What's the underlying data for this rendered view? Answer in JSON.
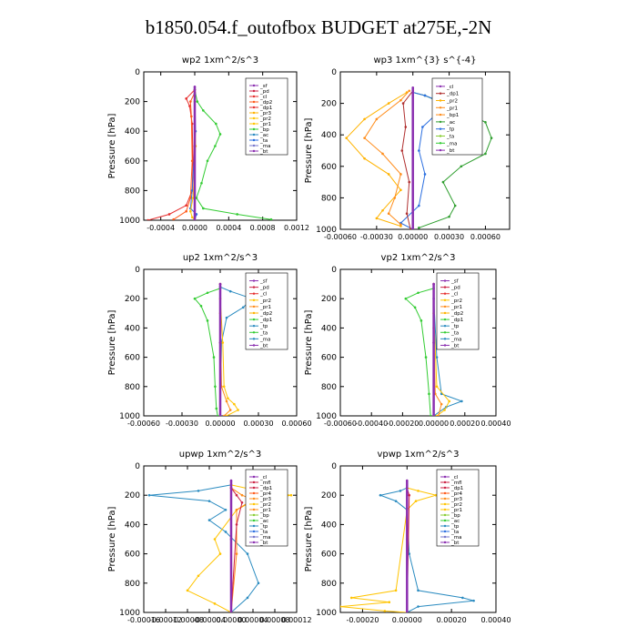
{
  "figure": {
    "title": "b1850.054.f_outofbox  BUDGET at275E,-2N"
  },
  "chart_data": [
    {
      "type": "line",
      "title": "wp2   1xm^2/s^3",
      "ylabel": "Pressure [hPa]",
      "xlim": [
        -0.0006,
        0.0012
      ],
      "ylim": [
        0,
        1000
      ],
      "xticks": [
        -0.0004,
        0.0,
        0.0004,
        0.0008,
        0.0012
      ],
      "xticklabels": [
        "-0.0004",
        "0.0000",
        "0.0004",
        "0.0008",
        "0.0012"
      ],
      "yticks": [
        0,
        200,
        400,
        600,
        800,
        1000
      ],
      "yticklabels": [
        "0",
        "200",
        "400",
        "600",
        "800",
        "1000"
      ],
      "legend": [
        "_sf",
        "_pd",
        "_cl",
        "_dp2",
        "_dp1",
        "_pr3",
        "_pr2",
        "_pr1",
        "_bp",
        "_ac",
        "_ta",
        "_ma",
        "_bt"
      ],
      "series": [
        {
          "name": "_bp",
          "color": "#33cc33",
          "x": [
            0,
            3e-05,
            0.0001,
            0.00025,
            0.0003,
            0.00024,
            0.00015,
            8e-05,
            2e-05,
            0.0001,
            0.0005,
            0.0009
          ],
          "y": [
            120,
            200,
            260,
            350,
            420,
            500,
            600,
            750,
            850,
            920,
            960,
            995
          ]
        },
        {
          "name": "_dp1",
          "color": "#e62e2e",
          "x": [
            0,
            -0.0001,
            -6e-05,
            -3e-05,
            -2e-05,
            -3e-05,
            -0.0001,
            -0.0003,
            -0.00055
          ],
          "y": [
            120,
            180,
            230,
            350,
            600,
            800,
            900,
            960,
            1000
          ]
        },
        {
          "name": "_dp2",
          "color": "#ff5a1a",
          "x": [
            0,
            -5e-05,
            -4e-05,
            -3e-05,
            -5e-05,
            -0.0001,
            -0.00025
          ],
          "y": [
            140,
            200,
            300,
            600,
            850,
            940,
            995
          ]
        },
        {
          "name": "_ta",
          "color": "#2a6ee0",
          "x": [
            0,
            1e-05,
            -3e-05,
            -5e-05,
            2e-05,
            0
          ],
          "y": [
            150,
            400,
            800,
            920,
            960,
            1000
          ]
        },
        {
          "name": "_pr1",
          "color": "#ffc400",
          "x": [
            0,
            1e-05,
            -2e-05,
            -5e-05,
            -3e-05,
            0
          ],
          "y": [
            200,
            500,
            850,
            940,
            980,
            1000
          ]
        },
        {
          "name": "_bt",
          "color": "#8b2fb0",
          "x": [
            0,
            0,
            0
          ],
          "y": [
            100,
            500,
            1000
          ]
        }
      ]
    },
    {
      "type": "line",
      "title": "wp3   1xm^{3} s^{-4}",
      "ylabel": "Pressure [hPa]",
      "xlim": [
        -0.0006,
        0.0008
      ],
      "ylim": [
        0,
        1000
      ],
      "xticks": [
        -0.0006,
        -0.0003,
        0.0,
        0.0003,
        0.0006
      ],
      "xticklabels": [
        "-0.00060",
        "-0.00030",
        "0.00000",
        "0.00030",
        "0.00060"
      ],
      "yticks": [
        0,
        200,
        400,
        600,
        800,
        1000
      ],
      "yticklabels": [
        "0",
        "200",
        "400",
        "600",
        "800",
        "1000"
      ],
      "legend": [
        "_cl",
        "_dp1",
        "_pr2",
        "_pr1",
        "_bp1",
        "_ac",
        "_tp",
        "_ta",
        "_ma",
        "_bt"
      ],
      "series": [
        {
          "name": "_ac",
          "color": "#2e9e2e",
          "x": [
            0,
            0.0001,
            0.00025,
            0.00045,
            0.0006,
            0.00065,
            0.0006,
            0.0004,
            0.00025,
            0.00035,
            0.0003,
            5e-05
          ],
          "y": [
            130,
            150,
            200,
            260,
            320,
            420,
            520,
            600,
            700,
            850,
            920,
            990
          ]
        },
        {
          "name": "_tp",
          "color": "#2a6ee0",
          "x": [
            0,
            0.0001,
            0.0002,
            0.00022,
            8e-05,
            5e-05,
            0.0001,
            5e-05,
            -0.0001,
            0
          ],
          "y": [
            130,
            150,
            180,
            250,
            350,
            500,
            650,
            850,
            960,
            1000
          ]
        },
        {
          "name": "_pr2",
          "color": "#ffb300",
          "x": [
            -5e-05,
            -0.0002,
            -0.0004,
            -0.00055,
            -0.0004,
            -0.0002,
            -0.0001,
            -0.00025,
            -0.0003,
            -0.0001
          ],
          "y": [
            130,
            200,
            300,
            420,
            550,
            650,
            750,
            880,
            930,
            980
          ]
        },
        {
          "name": "_pr1",
          "color": "#ff8c1a",
          "x": [
            -3e-05,
            -0.0001,
            -0.0003,
            -0.0004,
            -0.00025,
            -0.0001,
            -0.00015,
            -0.0002,
            -0.0001
          ],
          "y": [
            120,
            180,
            300,
            420,
            520,
            650,
            800,
            900,
            970
          ]
        },
        {
          "name": "_dp1",
          "color": "#b03030",
          "x": [
            0,
            -8e-05,
            -6e-05,
            -9e-05,
            -3e-05,
            -5e-05,
            -2e-05
          ],
          "y": [
            120,
            200,
            350,
            500,
            700,
            900,
            1000
          ]
        },
        {
          "name": "_bt",
          "color": "#8b2fb0",
          "x": [
            0,
            0,
            0
          ],
          "y": [
            100,
            500,
            1000
          ]
        }
      ]
    },
    {
      "type": "line",
      "title": "up2   1xm^2/s^3",
      "ylabel": "Pressure [hPa]",
      "xlim": [
        -0.0006,
        0.0006
      ],
      "ylim": [
        0,
        1000
      ],
      "xticks": [
        -0.0006,
        -0.0003,
        0.0,
        0.0003,
        0.0006
      ],
      "xticklabels": [
        "-0.00060",
        "-0.00030",
        "0.00000",
        "0.00030",
        "0.00060"
      ],
      "yticks": [
        0,
        200,
        400,
        600,
        800,
        1000
      ],
      "yticklabels": [
        "0",
        "200",
        "400",
        "600",
        "800",
        "1000"
      ],
      "legend": [
        "_sf",
        "_pd",
        "_cl",
        "_pr2",
        "_pr1",
        "_dp2",
        "_dp1",
        "_tp",
        "_ta",
        "_ma",
        "_bt"
      ],
      "series": [
        {
          "name": "_dp1",
          "color": "#33cc33",
          "x": [
            0,
            -0.0001,
            -0.0002,
            -0.00015,
            -0.0001,
            -5e-05,
            -4e-05,
            -3e-05,
            -2e-05
          ],
          "y": [
            130,
            160,
            200,
            250,
            350,
            600,
            800,
            950,
            1000
          ]
        },
        {
          "name": "_tp",
          "color": "#2a8bc0",
          "x": [
            0,
            8e-05,
            0.00025,
            0.00018,
            5e-05,
            1e-05,
            0
          ],
          "y": [
            120,
            150,
            200,
            260,
            330,
            500,
            1000
          ]
        },
        {
          "name": "_pr2",
          "color": "#ffc400",
          "x": [
            0,
            2e-05,
            3e-05,
            6e-05,
            0.00011,
            0.00014,
            5e-05
          ],
          "y": [
            200,
            500,
            800,
            880,
            920,
            960,
            1000
          ]
        },
        {
          "name": "_pr1",
          "color": "#ff8c1a",
          "x": [
            0,
            1e-05,
            5e-05,
            8e-05,
            3e-05
          ],
          "y": [
            300,
            800,
            900,
            960,
            1000
          ]
        },
        {
          "name": "_cl",
          "color": "#e62e2e",
          "x": [
            0,
            0,
            0
          ],
          "y": [
            100,
            500,
            1000
          ]
        },
        {
          "name": "_bt",
          "color": "#8b2fb0",
          "x": [
            0,
            0,
            0
          ],
          "y": [
            100,
            500,
            1000
          ]
        }
      ]
    },
    {
      "type": "line",
      "title": "vp2   1xm^2/s^3",
      "ylabel": "Pressure [hPa]",
      "xlim": [
        -0.0006,
        0.0004
      ],
      "ylim": [
        0,
        1000
      ],
      "xticks": [
        -0.0006,
        -0.0004,
        -0.0002,
        0.0,
        0.0002,
        0.0004
      ],
      "xticklabels": [
        "-0.00060",
        "-0.00040",
        "-0.00020",
        "0.00000",
        "0.00020",
        "0.00040"
      ],
      "yticks": [
        0,
        200,
        400,
        600,
        800,
        1000
      ],
      "yticklabels": [
        "0",
        "200",
        "400",
        "600",
        "800",
        "1000"
      ],
      "legend": [
        "_sf",
        "_pd",
        "_cl",
        "_pr2",
        "_pr1",
        "_dp2",
        "_dp1",
        "_tp",
        "_ta",
        "_ma",
        "_bt"
      ],
      "series": [
        {
          "name": "_dp1",
          "color": "#33cc33",
          "x": [
            0,
            -0.0001,
            -0.00018,
            -0.00012,
            -8e-05,
            -5e-05,
            -3e-05,
            -2e-05
          ],
          "y": [
            130,
            160,
            200,
            260,
            350,
            600,
            850,
            1000
          ]
        },
        {
          "name": "_tp",
          "color": "#2a8bc0",
          "x": [
            0,
            2e-05,
            5e-05,
            0.00018,
            8e-05,
            0
          ],
          "y": [
            200,
            600,
            850,
            900,
            940,
            1000
          ]
        },
        {
          "name": "_pr2",
          "color": "#ffc400",
          "x": [
            0,
            2e-05,
            0.0001,
            7e-05,
            2e-05
          ],
          "y": [
            300,
            800,
            900,
            960,
            1000
          ]
        },
        {
          "name": "_pr1",
          "color": "#ff8c1a",
          "x": [
            0,
            1e-05,
            5e-05,
            3e-05
          ],
          "y": [
            400,
            850,
            920,
            1000
          ]
        },
        {
          "name": "_cl",
          "color": "#e62e2e",
          "x": [
            0,
            0,
            0
          ],
          "y": [
            100,
            500,
            1000
          ]
        },
        {
          "name": "_bt",
          "color": "#8b2fb0",
          "x": [
            0,
            0,
            0
          ],
          "y": [
            100,
            500,
            1000
          ]
        }
      ]
    },
    {
      "type": "line",
      "title": "upwp   1xm^2/s^3",
      "ylabel": "Pressure [hPa]",
      "xlim": [
        -0.00016,
        0.00012
      ],
      "ylim": [
        0,
        1000
      ],
      "xticks": [
        -0.00016,
        -0.00012,
        -8e-05,
        -4e-05,
        0.0,
        4e-05,
        8e-05,
        0.00012
      ],
      "xticklabels": [
        "-0.00016",
        "-0.00012",
        "-0.00008",
        "-0.00004",
        "0.00000",
        "0.00004",
        "0.00008",
        "0.00012"
      ],
      "yticks": [
        0,
        200,
        400,
        600,
        800,
        1000
      ],
      "yticklabels": [
        "0",
        "200",
        "400",
        "600",
        "800",
        "1000"
      ],
      "legend": [
        "_cl",
        "_mfl",
        "_dp1",
        "_pr4",
        "_pr3",
        "_pr2",
        "_pr1",
        "_bp",
        "_ac",
        "_tp",
        "_ta",
        "_ma",
        "_bt"
      ],
      "series": [
        {
          "name": "_tp",
          "color": "#2a8bc0",
          "x": [
            0,
            -6e-05,
            -0.00015,
            -4e-05,
            -1e-05,
            -4e-05,
            -1e-05,
            3e-05,
            5e-05,
            3e-05,
            0
          ],
          "y": [
            130,
            170,
            200,
            240,
            300,
            370,
            450,
            600,
            800,
            900,
            1000
          ]
        },
        {
          "name": "_pr2",
          "color": "#ffc400",
          "x": [
            0,
            5e-05,
            0.00011,
            4e-05,
            1e-05,
            -3e-05,
            -2e-05,
            -6e-05,
            -8e-05,
            -3e-05,
            0
          ],
          "y": [
            130,
            170,
            200,
            240,
            300,
            500,
            600,
            750,
            850,
            940,
            1000
          ]
        },
        {
          "name": "_pr1",
          "color": "#ff8c1a",
          "x": [
            0,
            2e-05,
            4e-05,
            1e-05,
            1e-05,
            0
          ],
          "y": [
            150,
            200,
            230,
            300,
            600,
            1000
          ]
        },
        {
          "name": "_dp1",
          "color": "#cc2244",
          "x": [
            0,
            1e-05,
            2e-05,
            1e-05,
            0
          ],
          "y": [
            150,
            200,
            250,
            400,
            1000
          ]
        },
        {
          "name": "_bt",
          "color": "#8b2fb0",
          "x": [
            0,
            0,
            0
          ],
          "y": [
            100,
            500,
            1000
          ]
        }
      ]
    },
    {
      "type": "line",
      "title": "vpwp   1xm^2/s^3",
      "ylabel": "Pressure [hPa]",
      "xlim": [
        -0.0003,
        0.0004
      ],
      "ylim": [
        0,
        1000
      ],
      "xticks": [
        -0.0002,
        0.0,
        0.0002,
        0.0004
      ],
      "xticklabels": [
        "-0.00020",
        "0.00000",
        "0.00020",
        "0.00040"
      ],
      "yticks": [
        0,
        200,
        400,
        600,
        800,
        1000
      ],
      "yticklabels": [
        "0",
        "200",
        "400",
        "600",
        "800",
        "1000"
      ],
      "legend": [
        "_cl",
        "_mfl",
        "_dp1",
        "_pr4",
        "_pr3",
        "_pr2",
        "_pr1",
        "_bp",
        "_ac",
        "_tp",
        "_ta",
        "_ma",
        "_bt"
      ],
      "series": [
        {
          "name": "_tp",
          "color": "#2a8bc0",
          "x": [
            0,
            -3e-05,
            -0.00012,
            -5e-05,
            0,
            1e-05,
            5e-05,
            0.00025,
            0.0003,
            5e-05,
            0
          ],
          "y": [
            150,
            170,
            200,
            240,
            300,
            600,
            850,
            900,
            920,
            960,
            1000
          ]
        },
        {
          "name": "_pr2",
          "color": "#ffc400",
          "x": [
            0,
            5e-05,
            0.00013,
            4e-05,
            0,
            -5e-05,
            -0.00025,
            -8e-05,
            -0.0003,
            -0.0001,
            0
          ],
          "y": [
            150,
            170,
            200,
            240,
            300,
            850,
            900,
            930,
            960,
            990,
            1000
          ]
        },
        {
          "name": "_dp1",
          "color": "#cc2244",
          "x": [
            0,
            1e-05,
            0
          ],
          "y": [
            150,
            200,
            1000
          ]
        },
        {
          "name": "_bt",
          "color": "#8b2fb0",
          "x": [
            0,
            0,
            0
          ],
          "y": [
            100,
            500,
            1000
          ]
        }
      ]
    }
  ]
}
